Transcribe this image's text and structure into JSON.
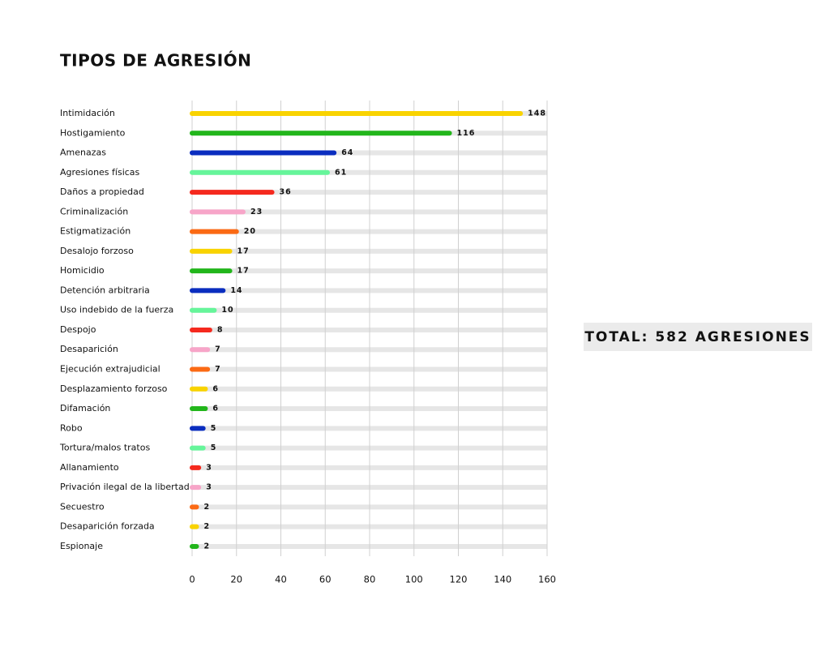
{
  "chart_data": {
    "type": "bar",
    "orientation": "horizontal",
    "title": "TIPOS DE AGRESIÓN",
    "categories": [
      "Intimidación",
      "Hostigamiento",
      "Amenazas",
      "Agresiones físicas",
      "Daños a propiedad",
      "Criminalización",
      "Estigmatización",
      "Desalojo forzoso",
      "Homicidio",
      "Detención arbitraria",
      "Uso indebido de la fuerza",
      "Despojo",
      "Desaparición",
      "Ejecución extrajudicial",
      "Desplazamiento forzoso",
      "Difamación",
      "Robo",
      "Tortura/malos tratos",
      "Allanamiento",
      "Privación ilegal de la libertad",
      "Secuestro",
      "Desaparición forzada",
      "Espionaje"
    ],
    "values": [
      148,
      116,
      64,
      61,
      36,
      23,
      20,
      17,
      17,
      14,
      10,
      8,
      7,
      7,
      6,
      6,
      5,
      5,
      3,
      3,
      2,
      2,
      2
    ],
    "colors": [
      "#f9d300",
      "#22b61b",
      "#0a2dbf",
      "#66f59a",
      "#f5291e",
      "#f7a5c8",
      "#fb6a14",
      "#f9d300",
      "#22b61b",
      "#0a2dbf",
      "#66f59a",
      "#f5291e",
      "#f7a5c8",
      "#fb6a14",
      "#f9d300",
      "#22b61b",
      "#0a2dbf",
      "#66f59a",
      "#f5291e",
      "#f7a5c8",
      "#fb6a14",
      "#f9d300",
      "#22b61b"
    ],
    "xlim": [
      0,
      160
    ],
    "xticks": [
      0,
      20,
      40,
      60,
      80,
      100,
      120,
      140,
      160
    ],
    "grid": true,
    "annotation": "TOTAL: 582 AGRESIONES"
  }
}
